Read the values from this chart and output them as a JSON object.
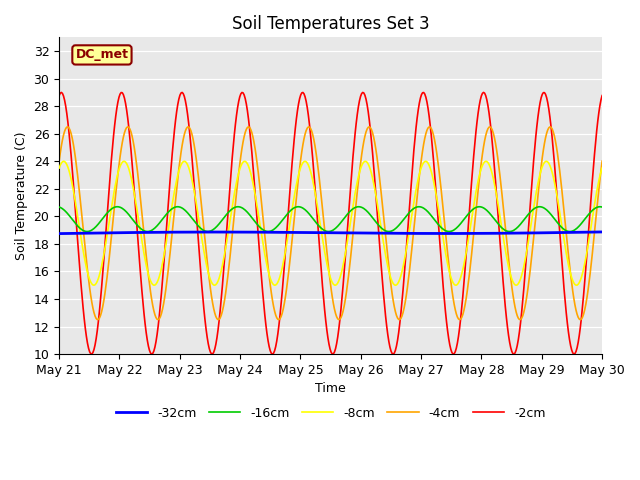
{
  "title": "Soil Temperatures Set 3",
  "xlabel": "Time",
  "ylabel": "Soil Temperature (C)",
  "ylim": [
    10,
    33
  ],
  "yticks": [
    10,
    12,
    14,
    16,
    18,
    20,
    22,
    24,
    26,
    28,
    30,
    32
  ],
  "x_labels": [
    "May 21",
    "May 22",
    "May 23",
    "May 24",
    "May 25",
    "May 26",
    "May 27",
    "May 28",
    "May 29",
    "May 30"
  ],
  "bg_color": "#e8e8e8",
  "annotation_text": "DC_met",
  "annotation_color": "#8B0000",
  "annotation_bg": "#FFFF99",
  "title_fontsize": 12,
  "label_fontsize": 9,
  "tick_fontsize": 9
}
